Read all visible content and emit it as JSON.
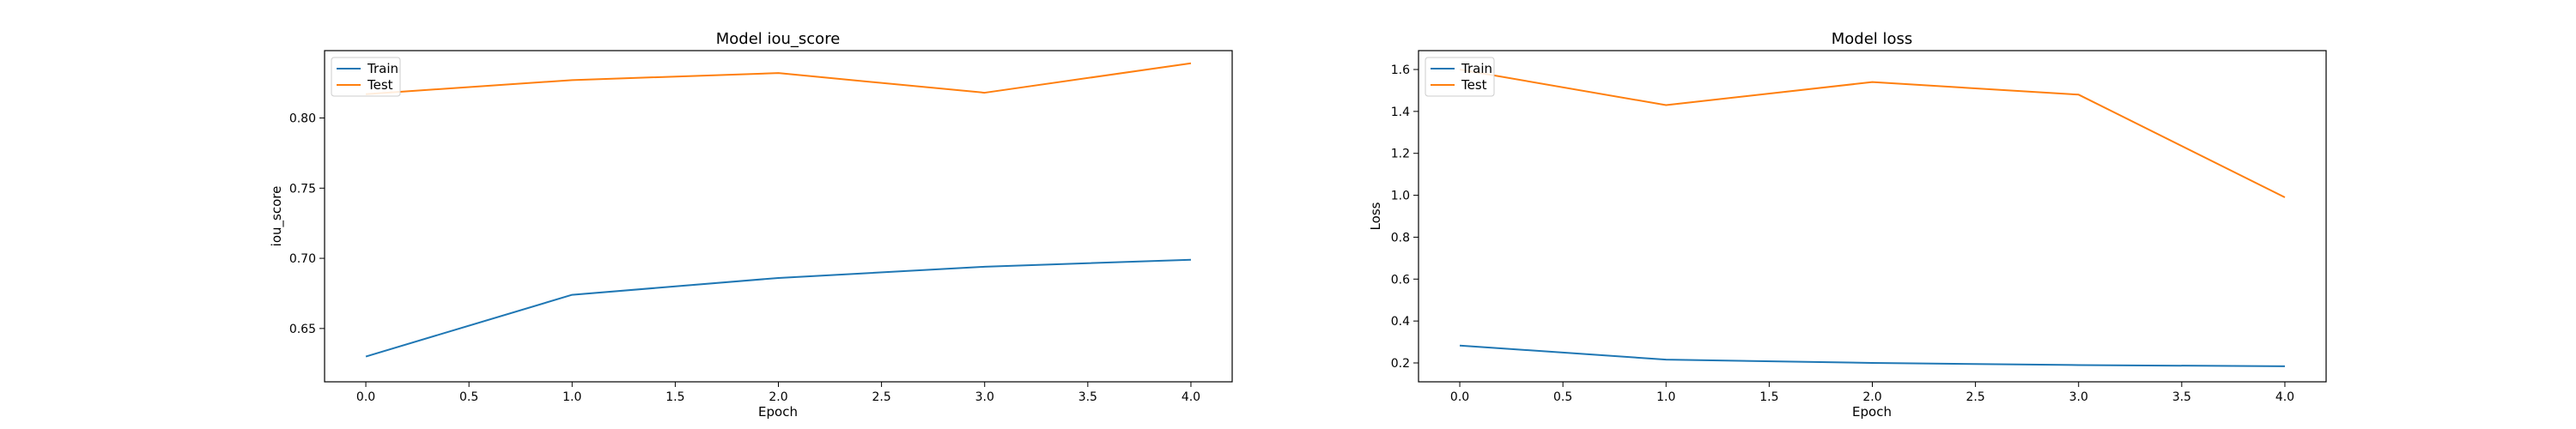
{
  "chart_data": [
    {
      "type": "line",
      "title": "Model iou_score",
      "xlabel": "Epoch",
      "ylabel": "iou_score",
      "x": [
        0,
        1,
        2,
        3,
        4
      ],
      "xlim": [
        -0.2,
        4.2
      ],
      "ylim": [
        0.612,
        0.848
      ],
      "xticks": [
        0.0,
        0.5,
        1.0,
        1.5,
        2.0,
        2.5,
        3.0,
        3.5,
        4.0
      ],
      "xtick_labels": [
        "0.0",
        "0.5",
        "1.0",
        "1.5",
        "2.0",
        "2.5",
        "3.0",
        "3.5",
        "4.0"
      ],
      "yticks": [
        0.65,
        0.7,
        0.75,
        0.8
      ],
      "ytick_labels": [
        "0.65",
        "0.70",
        "0.75",
        "0.80"
      ],
      "grid": false,
      "legend_position": "top-left",
      "series": [
        {
          "name": "Train",
          "color": "#1f77b4",
          "values": [
            0.63,
            0.674,
            0.686,
            0.694,
            0.699
          ]
        },
        {
          "name": "Test",
          "color": "#ff7f0e",
          "values": [
            0.817,
            0.827,
            0.832,
            0.818,
            0.839
          ]
        }
      ]
    },
    {
      "type": "line",
      "title": "Model loss",
      "xlabel": "Epoch",
      "ylabel": "Loss",
      "x": [
        0,
        1,
        2,
        3,
        4
      ],
      "xlim": [
        -0.2,
        4.2
      ],
      "ylim": [
        0.11,
        1.69
      ],
      "xticks": [
        0.0,
        0.5,
        1.0,
        1.5,
        2.0,
        2.5,
        3.0,
        3.5,
        4.0
      ],
      "xtick_labels": [
        "0.0",
        "0.5",
        "1.0",
        "1.5",
        "2.0",
        "2.5",
        "3.0",
        "3.5",
        "4.0"
      ],
      "yticks": [
        0.2,
        0.4,
        0.6,
        0.8,
        1.0,
        1.2,
        1.4,
        1.6
      ],
      "ytick_labels": [
        "0.2",
        "0.4",
        "0.6",
        "0.8",
        "1.0",
        "1.2",
        "1.4",
        "1.6"
      ],
      "grid": false,
      "legend_position": "top-left",
      "series": [
        {
          "name": "Train",
          "color": "#1f77b4",
          "values": [
            0.283,
            0.216,
            0.2,
            0.19,
            0.184
          ]
        },
        {
          "name": "Test",
          "color": "#ff7f0e",
          "values": [
            1.6,
            1.43,
            1.54,
            1.48,
            0.99
          ]
        }
      ]
    }
  ]
}
